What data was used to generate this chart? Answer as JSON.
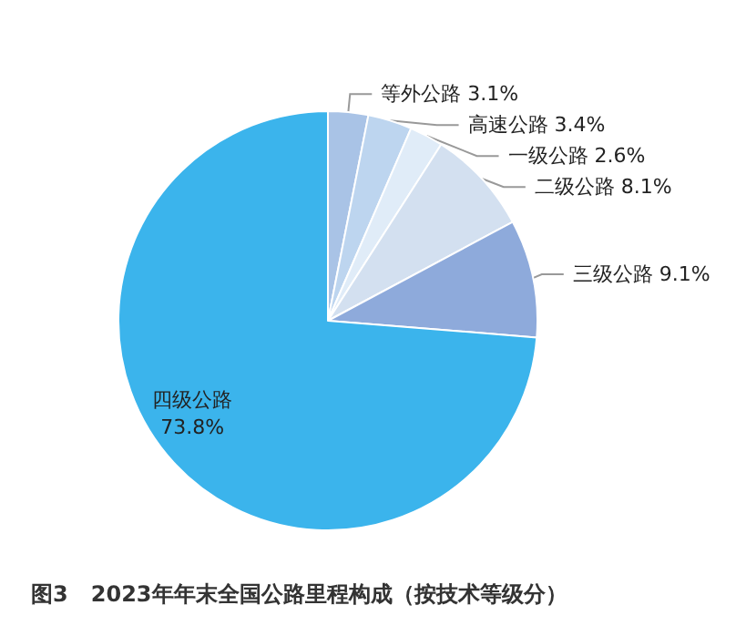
{
  "chart_data": {
    "type": "pie",
    "title": "图3   2023年年末全国公路里程构成（按技术等级分）",
    "categories": [
      "等外公路",
      "高速公路",
      "一级公路",
      "二级公路",
      "三级公路",
      "四级公路"
    ],
    "values": [
      3.1,
      3.4,
      2.6,
      8.1,
      9.1,
      73.8
    ],
    "value_labels": [
      "3.1%",
      "3.4%",
      "2.6%",
      "8.1%",
      "9.1%",
      "73.8%"
    ],
    "colors": [
      "#a9c3e6",
      "#bdd5ef",
      "#e0ecf8",
      "#d3e0f0",
      "#8eaadb",
      "#3bb4ec"
    ],
    "legend": false
  }
}
